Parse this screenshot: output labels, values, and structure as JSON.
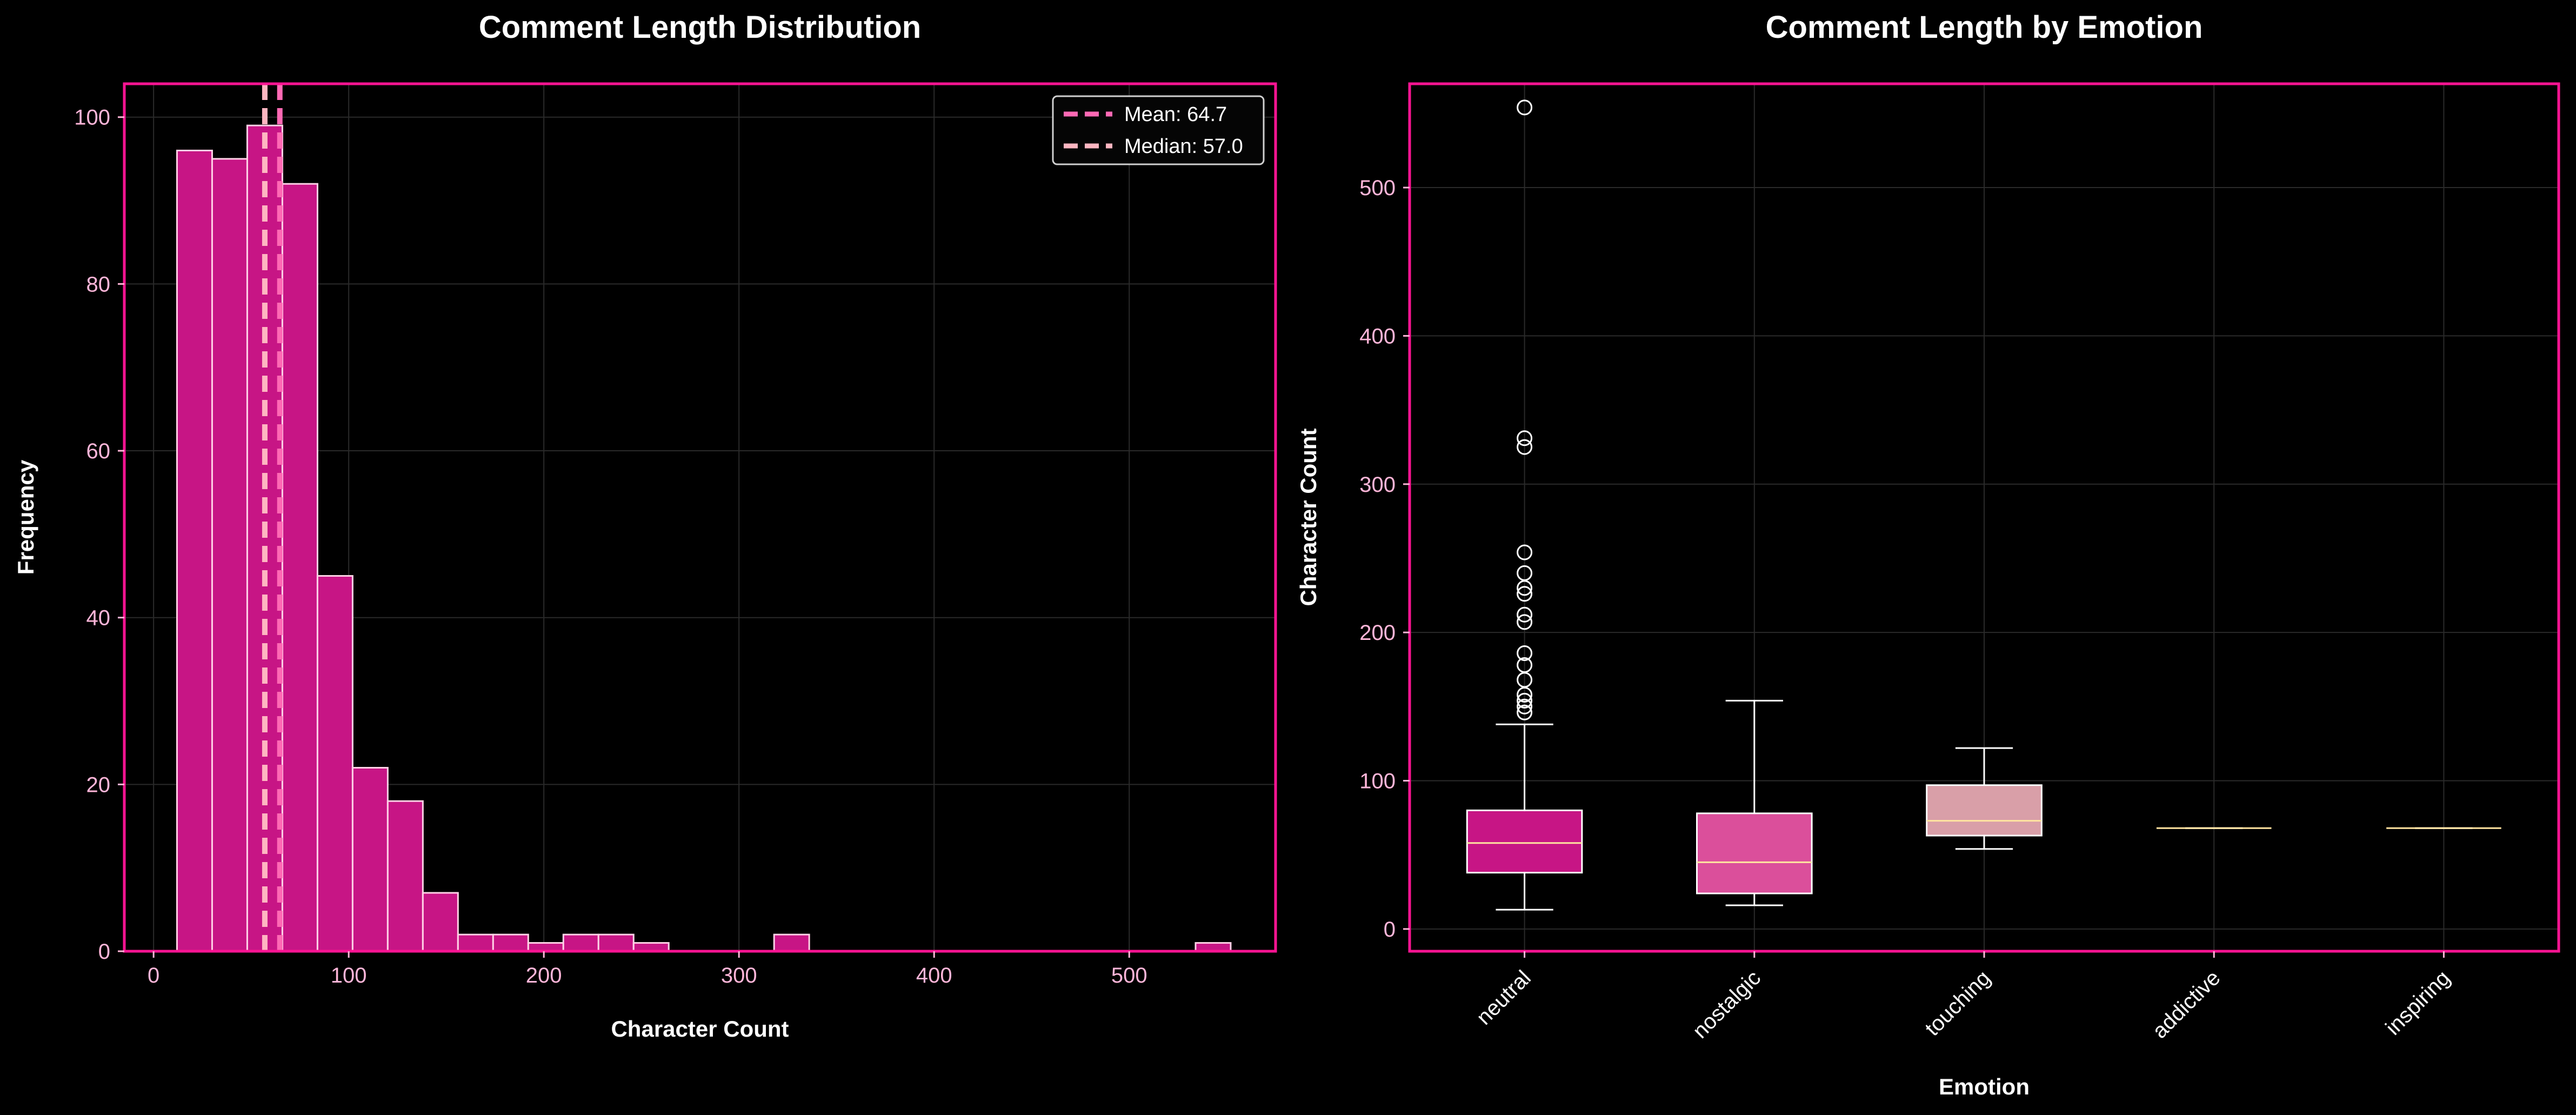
{
  "chart_data": [
    {
      "type": "histogram",
      "title": "Comment Length Distribution",
      "xlabel": "Character Count",
      "ylabel": "Frequency",
      "xlim": [
        -15,
        575
      ],
      "ylim": [
        0,
        104
      ],
      "xticks": [
        0,
        100,
        200,
        300,
        400,
        500
      ],
      "yticks": [
        0,
        20,
        40,
        60,
        80,
        100
      ],
      "grid": true,
      "bar_color": "#c71585",
      "bin_edges": [
        12,
        30,
        48,
        66,
        84,
        102,
        120,
        138,
        156,
        174,
        192,
        210,
        228,
        246,
        264,
        282,
        300,
        318,
        336,
        354,
        372,
        390,
        408,
        426,
        444,
        462,
        480,
        498,
        516,
        534,
        552
      ],
      "counts": [
        96,
        95,
        99,
        92,
        45,
        22,
        18,
        7,
        2,
        2,
        1,
        2,
        2,
        1,
        0,
        0,
        0,
        2,
        0,
        0,
        0,
        0,
        0,
        0,
        0,
        0,
        0,
        0,
        0,
        1
      ],
      "reference_lines": [
        {
          "label": "Mean: 64.7",
          "x": 64.7,
          "color": "#ff69b4"
        },
        {
          "label": "Median: 57.0",
          "x": 57.0,
          "color": "#ffb6c1"
        }
      ],
      "legend_position": "top-right"
    },
    {
      "type": "box",
      "title": "Comment Length by Emotion",
      "xlabel": "Emotion",
      "ylabel": "Character Count",
      "ylim": [
        -15,
        570
      ],
      "yticks": [
        0,
        100,
        200,
        300,
        400,
        500
      ],
      "grid": true,
      "categories": [
        "neutral",
        "nostalgic",
        "touching",
        "addictive",
        "inspiring"
      ],
      "boxes": [
        {
          "name": "neutral",
          "whisker_low": 13,
          "q1": 38,
          "median": 58,
          "q3": 80,
          "whisker_high": 138,
          "fliers": [
            146,
            150,
            154,
            158,
            168,
            178,
            186,
            207,
            212,
            226,
            230,
            240,
            254,
            325,
            331,
            554
          ],
          "color": "#c71585"
        },
        {
          "name": "nostalgic",
          "whisker_low": 16,
          "q1": 24,
          "median": 45,
          "q3": 78,
          "whisker_high": 154,
          "fliers": [],
          "color": "#db4f9b"
        },
        {
          "name": "touching",
          "whisker_low": 54,
          "q1": 63,
          "median": 73,
          "q3": 97,
          "whisker_high": 122,
          "fliers": [],
          "color": "#d99fa8"
        },
        {
          "name": "addictive",
          "whisker_low": 68,
          "q1": 68,
          "median": 68,
          "q3": 68,
          "whisker_high": 68,
          "fliers": [],
          "color": "#ffb6c1"
        },
        {
          "name": "inspiring",
          "whisker_low": 68,
          "q1": 68,
          "median": 68,
          "q3": 68,
          "whisker_high": 68,
          "fliers": [],
          "color": "#ffb6c1"
        }
      ]
    }
  ],
  "colors": {
    "background": "#000000",
    "spine": "#ff1493",
    "grid": "#2a2a2a",
    "tick_text": "#ffb6d9",
    "text": "#ffffff",
    "bar_edge": "#ffd1e6",
    "median_line": "#ffe4a0"
  }
}
